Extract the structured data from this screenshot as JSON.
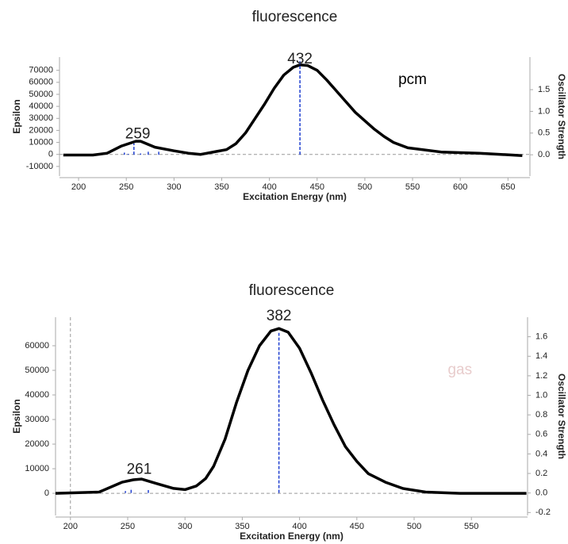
{
  "chart_data": [
    {
      "type": "line",
      "title": "fluorescence",
      "xlabel": "Excitation Energy (nm)",
      "ylabel": "Epsilon",
      "y2label": "Oscillator Strength",
      "xlim": [
        180,
        673
      ],
      "xticks": [
        200,
        250,
        300,
        350,
        400,
        450,
        500,
        550,
        600,
        650
      ],
      "ylim": [
        -18000,
        81000
      ],
      "yticks": [
        -10000,
        0,
        10000,
        20000,
        30000,
        40000,
        50000,
        60000,
        70000
      ],
      "y2lim": [
        -0.49,
        2.25
      ],
      "y2ticks": [
        {
          "value": 0,
          "label": "0.0"
        },
        0.5,
        {
          "value": 1,
          "label": "1.0"
        },
        1.5
      ],
      "series": [
        {
          "name": "spectrum",
          "color": "#000000",
          "x": [
            184,
            215,
            230,
            245,
            260,
            265,
            280,
            300,
            315,
            328,
            345,
            355,
            365,
            375,
            385,
            395,
            405,
            415,
            425,
            432,
            440,
            450,
            460,
            470,
            480,
            490,
            500,
            510,
            520,
            530,
            545,
            580,
            620,
            665
          ],
          "values": [
            -500,
            -500,
            1000,
            7000,
            11000,
            11000,
            6000,
            3000,
            1000,
            0,
            2500,
            4000,
            9000,
            18000,
            30000,
            42000,
            55000,
            66000,
            72500,
            74500,
            74000,
            70000,
            62000,
            53000,
            44000,
            35000,
            28000,
            21000,
            15000,
            10000,
            5500,
            2000,
            1000,
            -1000
          ]
        },
        {
          "name": "oscillator",
          "type": "stick",
          "axis": "y2",
          "color": "#1f3fd0",
          "x": [
            248,
            252,
            258,
            265,
            273,
            284,
            432
          ],
          "values": [
            0.05,
            0.02,
            0.26,
            0.03,
            0.07,
            0.07,
            2.2
          ]
        }
      ],
      "annotations": [
        {
          "text": "432",
          "x": 432,
          "y": 79000
        },
        {
          "text": "259",
          "x": 262,
          "y": 16500
        },
        {
          "text": "pcm",
          "x": 550,
          "y": 62000,
          "color": "#000000"
        }
      ]
    },
    {
      "type": "line",
      "title": "fluorescence",
      "xlabel": "Excitation Energy (nm)",
      "ylabel": "Epsilon",
      "y2label": "Oscillator Strength",
      "xlim": [
        187,
        599
      ],
      "xticks": [
        200,
        250,
        300,
        350,
        400,
        450,
        500,
        550
      ],
      "ylim": [
        -9000,
        71600
      ],
      "yticks": [
        0,
        10000,
        20000,
        30000,
        40000,
        50000,
        60000
      ],
      "y2lim": [
        -0.23,
        1.8
      ],
      "y2ticks": [
        -0.2,
        {
          "value": 0,
          "label": "0.0"
        },
        0.2,
        0.4,
        0.6,
        0.8,
        {
          "value": 1,
          "label": "1.0"
        },
        1.2,
        1.4,
        1.6
      ],
      "reference_line_x": 200,
      "series": [
        {
          "name": "spectrum",
          "color": "#000000",
          "x": [
            187,
            225,
            245,
            255,
            262,
            275,
            290,
            300,
            310,
            318,
            325,
            335,
            345,
            355,
            365,
            375,
            382,
            390,
            400,
            410,
            420,
            430,
            440,
            450,
            460,
            475,
            490,
            510,
            540,
            598
          ],
          "values": [
            0,
            500,
            4500,
            5500,
            5800,
            4000,
            2000,
            1500,
            3000,
            6000,
            11000,
            22000,
            37000,
            50000,
            60000,
            66000,
            67000,
            65500,
            59000,
            49000,
            38000,
            28000,
            19000,
            13000,
            8000,
            4500,
            2000,
            500,
            0,
            0
          ]
        },
        {
          "name": "oscillator",
          "type": "stick",
          "axis": "y2",
          "color": "#1f3fd0",
          "x": [
            248,
            253,
            268,
            382
          ],
          "values": [
            0.02,
            0.05,
            0.03,
            1.64
          ]
        }
      ],
      "annotations": [
        {
          "text": "382",
          "x": 382,
          "y": 72000
        },
        {
          "text": "261",
          "x": 260,
          "y": 9500
        },
        {
          "text": "gas",
          "x": 540,
          "y": 50000,
          "color": "#e8cccc"
        }
      ]
    }
  ]
}
